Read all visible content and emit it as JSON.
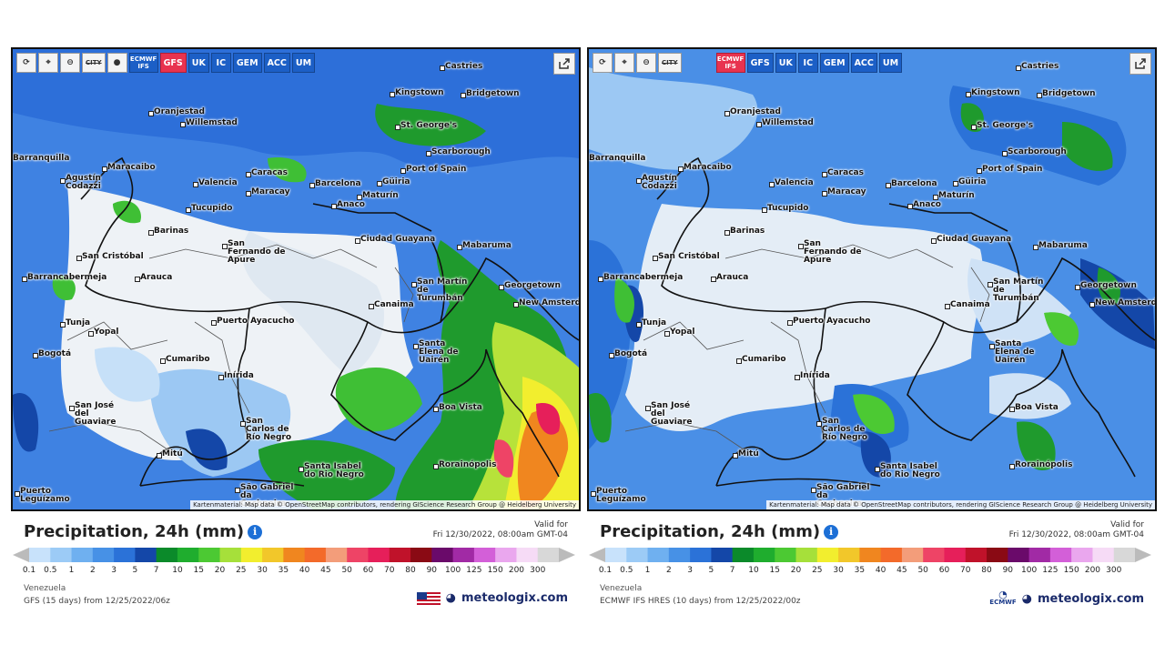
{
  "toolbar_common": {
    "models_left": [
      "ECMWF IFS",
      "GFS",
      "UK",
      "IC",
      "GEM",
      "ACC",
      "UM"
    ],
    "models_right": [
      "ECMWF IFS",
      "GFS",
      "UK",
      "IC",
      "GEM",
      "ACC",
      "UM"
    ],
    "city_btn": "CITY"
  },
  "left": {
    "active_model": "GFS",
    "title": "Precipitation, 24h (mm)",
    "valid_label": "Valid for",
    "valid_time": "Fri 12/30/2022, 08:00am GMT-04",
    "region": "Venezuela",
    "source": "GFS (15 days) from 12/25/2022/06z",
    "brand": "meteologix.com",
    "attribution": "Kartenmaterial: Map data © OpenStreetMap contributors, rendering GIScience Research Group @ Heidelberg University"
  },
  "right": {
    "active_model": "ECMWF IFS",
    "title": "Precipitation, 24h (mm)",
    "valid_label": "Valid for",
    "valid_time": "Fri 12/30/2022, 08:00am GMT-04",
    "region": "Venezuela",
    "source": "ECMWF IFS HRES (10 days) from 12/25/2022/00z",
    "brand": "meteologix.com",
    "ecmwf_logo_text": "ECMWF",
    "attribution": "Kartenmaterial: Map data © OpenStreetMap contributors, rendering GIScience Research Group @ Heidelberg University"
  },
  "legend": {
    "ticks": [
      "0.1",
      "0.5",
      "1",
      "2",
      "3",
      "5",
      "7",
      "10",
      "15",
      "20",
      "25",
      "30",
      "35",
      "40",
      "45",
      "50",
      "60",
      "70",
      "80",
      "90",
      "100",
      "125",
      "150",
      "200",
      "300"
    ],
    "colors": [
      "#c8e2fb",
      "#9ccbf6",
      "#6fb0f0",
      "#4791e6",
      "#2b72d8",
      "#1447a8",
      "#0b8a2a",
      "#1fad2e",
      "#4cc933",
      "#a6e03a",
      "#f2ee2e",
      "#f2c72a",
      "#f0861f",
      "#f36a2a",
      "#f39d7a",
      "#ee4466",
      "#e61f5a",
      "#c0122a",
      "#8a0a14",
      "#6a0a6a",
      "#a12aa5",
      "#d35fd8",
      "#eaa7ee",
      "#f6dbf6",
      "#d8d8d8"
    ]
  },
  "cities": [
    {
      "name": "Castries"
    },
    {
      "name": "Kingstown"
    },
    {
      "name": "Bridgetown"
    },
    {
      "name": "Oranjestad"
    },
    {
      "name": "Willemstad"
    },
    {
      "name": "St. George's"
    },
    {
      "name": "Scarborough"
    },
    {
      "name": "Port of Spain"
    },
    {
      "name": "Barranquilla"
    },
    {
      "name": "Maracaibo"
    },
    {
      "name": "Caracas"
    },
    {
      "name": "Valencia"
    },
    {
      "name": "Barcelona"
    },
    {
      "name": "Güiria"
    },
    {
      "name": "Maracay"
    },
    {
      "name": "Maturín"
    },
    {
      "name": "Agustín Codazzi"
    },
    {
      "name": "Anaco"
    },
    {
      "name": "Tucupido"
    },
    {
      "name": "Barinas"
    },
    {
      "name": "San Fernando de Apure"
    },
    {
      "name": "Ciudad Guayana"
    },
    {
      "name": "Mabaruma"
    },
    {
      "name": "San Cristóbal"
    },
    {
      "name": "Arauca"
    },
    {
      "name": "Barrancabermeja"
    },
    {
      "name": "San Martín de Turumbán"
    },
    {
      "name": "Georgetown"
    },
    {
      "name": "New Amsterdam"
    },
    {
      "name": "Canaima"
    },
    {
      "name": "Tunja"
    },
    {
      "name": "Yopal"
    },
    {
      "name": "Puerto Ayacucho"
    },
    {
      "name": "Bogotá"
    },
    {
      "name": "Santa Elena de Uairén"
    },
    {
      "name": "Cumaribo"
    },
    {
      "name": "Inírida"
    },
    {
      "name": "Boa Vista"
    },
    {
      "name": "San José del Guaviare"
    },
    {
      "name": "San Carlos de Río Negro"
    },
    {
      "name": "Mitú"
    },
    {
      "name": "Rorainópolis"
    },
    {
      "name": "São Gabriel da Cachoeira"
    },
    {
      "name": "Santa Isabel do Rio Negro"
    },
    {
      "name": "Puerto Leguízamo"
    }
  ]
}
